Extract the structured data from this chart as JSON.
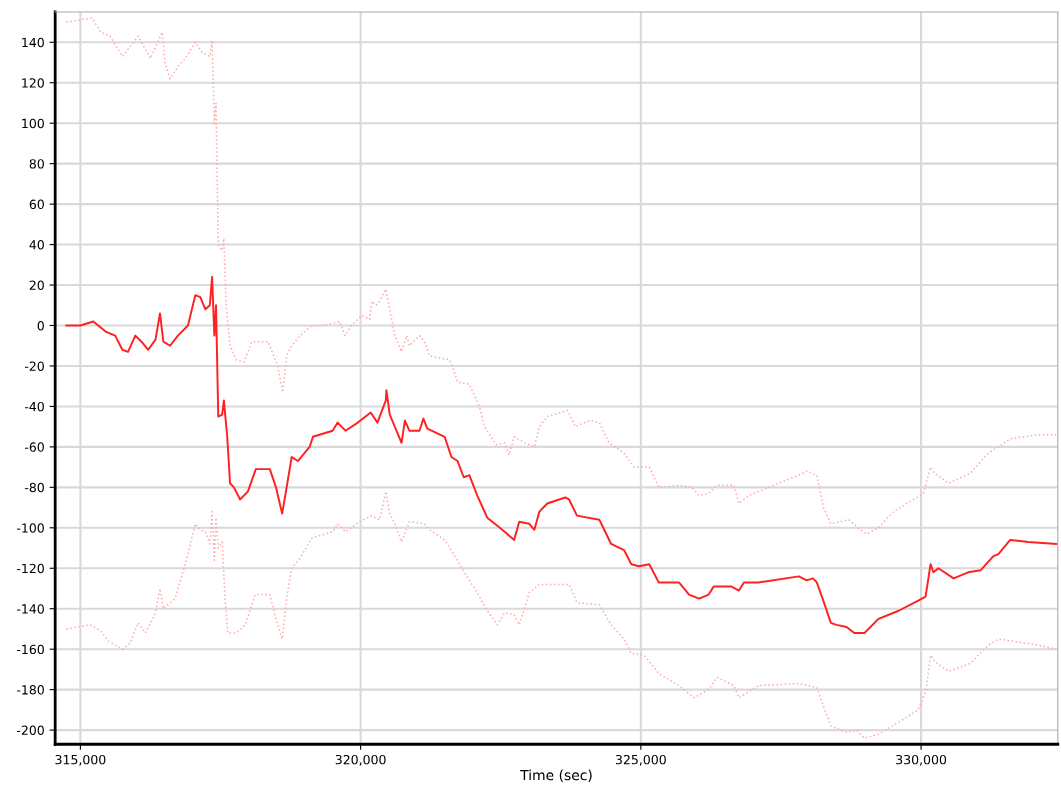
{
  "chart_data": {
    "type": "line",
    "xlabel": "Time (sec)",
    "xlim": [
      314550,
      332440
    ],
    "ylim": [
      -207,
      155
    ],
    "xticks": [
      {
        "value": 315000,
        "label": "315,000"
      },
      {
        "value": 320000,
        "label": "320,000"
      },
      {
        "value": 325000,
        "label": "325,000"
      },
      {
        "value": 330000,
        "label": "330,000"
      }
    ],
    "yticks": [
      -200,
      -180,
      -160,
      -140,
      -120,
      -100,
      -80,
      -60,
      -40,
      -20,
      0,
      20,
      40,
      60,
      80,
      100,
      120,
      140
    ],
    "grid": true,
    "marker": "none",
    "series": [
      {
        "color": "#ffaaaa",
        "line_style": "dotted",
        "x": [
          314750,
          315210,
          315360,
          315530,
          315750,
          316030,
          316250,
          316460,
          316510,
          316600,
          316740,
          316870,
          317050,
          317170,
          317310,
          317350,
          317390,
          317420,
          317460,
          317530,
          317560,
          317600,
          317670,
          317780,
          317920,
          318060,
          318350,
          318520,
          318610,
          318680,
          318770,
          318920,
          319130,
          319360,
          319630,
          319720,
          319840,
          320020,
          320160,
          320200,
          320270,
          320340,
          320450,
          320520,
          320610,
          320730,
          320820,
          320870,
          321050,
          321140,
          321230,
          321590,
          321660,
          321730,
          321940,
          322120,
          322210,
          322420,
          322570,
          322650,
          322740,
          322920,
          323100,
          323190,
          323330,
          323690,
          323830,
          324080,
          324260,
          324430,
          324700,
          324880,
          325150,
          325320,
          325680,
          325910,
          326040,
          326210,
          326360,
          326660,
          326750,
          326930,
          327280,
          327820,
          327960,
          328140,
          328260,
          328390,
          328710,
          328920,
          329030,
          329240,
          329510,
          329860,
          330040,
          330170,
          330240,
          330490,
          330880,
          331200,
          331380,
          331590,
          332090,
          332410
        ],
        "values": [
          150,
          152,
          145,
          143,
          133,
          143,
          132,
          145,
          130,
          122,
          128,
          132,
          140,
          135,
          133,
          141,
          100,
          110,
          40,
          37,
          43,
          10,
          -10,
          -17,
          -18,
          -8,
          -8,
          -20,
          -33,
          -15,
          -10,
          -5,
          0,
          0,
          2,
          -5,
          0,
          5,
          3,
          12,
          10,
          12,
          18,
          8,
          -5,
          -13,
          -5,
          -10,
          -5,
          -8,
          -15,
          -17,
          -22,
          -28,
          -29,
          -40,
          -50,
          -59,
          -58,
          -64,
          -55,
          -58,
          -60,
          -50,
          -45,
          -42,
          -50,
          -47,
          -48,
          -58,
          -63,
          -70,
          -70,
          -80,
          -79,
          -80,
          -84,
          -83,
          -79,
          -79,
          -88,
          -84,
          -80,
          -74,
          -72,
          -74,
          -90,
          -98,
          -96,
          -101,
          -103,
          -100,
          -92,
          -86,
          -83,
          -70,
          -73,
          -78,
          -73,
          -63,
          -60,
          -56,
          -54,
          -54
        ]
      },
      {
        "color": "#ff2020",
        "line_style": "solid",
        "x": [
          314750,
          315000,
          315230,
          315450,
          315620,
          315750,
          315850,
          315980,
          316090,
          316210,
          316340,
          316420,
          316480,
          316600,
          316740,
          316920,
          317050,
          317140,
          317230,
          317310,
          317350,
          317390,
          317420,
          317460,
          317530,
          317560,
          317620,
          317670,
          317740,
          317850,
          317990,
          318130,
          318380,
          318490,
          318600,
          318680,
          318770,
          318880,
          319090,
          319150,
          319500,
          319590,
          319730,
          319950,
          320180,
          320300,
          320450,
          320460,
          320520,
          320610,
          320730,
          320790,
          320870,
          321050,
          321120,
          321190,
          321500,
          321620,
          321730,
          321840,
          321940,
          322080,
          322260,
          322440,
          322570,
          322740,
          322830,
          323010,
          323100,
          323190,
          323330,
          323650,
          323720,
          323860,
          324260,
          324470,
          324700,
          324830,
          324970,
          325150,
          325320,
          325680,
          325860,
          326040,
          326210,
          326300,
          326610,
          326750,
          326840,
          327100,
          327820,
          327960,
          328070,
          328140,
          328280,
          328390,
          328490,
          328670,
          328810,
          328990,
          329240,
          329600,
          329950,
          330080,
          330170,
          330220,
          330310,
          330580,
          330840,
          331060,
          331290,
          331380,
          331590,
          331910,
          332410
        ],
        "values": [
          0,
          0,
          2,
          -3,
          -5,
          -12,
          -13,
          -5,
          -8,
          -12,
          -7,
          6,
          -8,
          -10,
          -5,
          0,
          15,
          14,
          8,
          10,
          24,
          -5,
          10,
          -45,
          -44,
          -37,
          -55,
          -78,
          -80,
          -86,
          -82,
          -71,
          -71,
          -80,
          -93,
          -80,
          -65,
          -67,
          -60,
          -55,
          -52,
          -48,
          -52,
          -48,
          -43,
          -48,
          -37,
          -32,
          -44,
          -50,
          -58,
          -47,
          -52,
          -52,
          -46,
          -51,
          -55,
          -65,
          -67,
          -75,
          -74,
          -84,
          -95,
          -99,
          -102,
          -106,
          -97,
          -98,
          -101,
          -92,
          -88,
          -85,
          -86,
          -94,
          -96,
          -108,
          -111,
          -118,
          -119,
          -118,
          -127,
          -127,
          -133,
          -135,
          -133,
          -129,
          -129,
          -131,
          -127,
          -127,
          -124,
          -126,
          -125,
          -127,
          -138,
          -147,
          -148,
          -149,
          -152,
          -152,
          -145,
          -141,
          -136,
          -134,
          -118,
          -122,
          -120,
          -125,
          -122,
          -121,
          -114,
          -113,
          -106,
          -107,
          -108
        ]
      },
      {
        "color": "#ffaaaa",
        "line_style": "dotted",
        "x": [
          314750,
          315180,
          315360,
          315500,
          315750,
          315890,
          316030,
          316160,
          316340,
          316420,
          316480,
          316690,
          316870,
          317050,
          317140,
          317230,
          317310,
          317350,
          317390,
          317420,
          317460,
          317530,
          317580,
          317630,
          317780,
          317940,
          318120,
          318380,
          318490,
          318600,
          318680,
          318770,
          318920,
          319130,
          319500,
          319590,
          319730,
          319980,
          320200,
          320340,
          320450,
          320520,
          320610,
          320730,
          320870,
          321140,
          321230,
          321500,
          321680,
          321850,
          322080,
          322260,
          322440,
          322570,
          322740,
          322830,
          323010,
          323190,
          323720,
          323860,
          324260,
          324470,
          324700,
          324830,
          325060,
          325320,
          325680,
          325950,
          326210,
          326360,
          326660,
          326750,
          327100,
          327820,
          328140,
          328280,
          328390,
          328670,
          328850,
          328990,
          329240,
          329600,
          329950,
          330090,
          330170,
          330240,
          330490,
          330880,
          331200,
          331380,
          332090,
          332410
        ],
        "values": [
          -150,
          -148,
          -151,
          -156,
          -160,
          -157,
          -147,
          -152,
          -142,
          -130,
          -140,
          -135,
          -118,
          -98,
          -101,
          -102,
          -108,
          -92,
          -117,
          -95,
          -110,
          -107,
          -135,
          -152,
          -152,
          -148,
          -133,
          -133,
          -145,
          -155,
          -135,
          -120,
          -115,
          -105,
          -102,
          -98,
          -102,
          -97,
          -94,
          -96,
          -82,
          -93,
          -98,
          -107,
          -97,
          -98,
          -101,
          -106,
          -114,
          -122,
          -132,
          -141,
          -148,
          -142,
          -143,
          -148,
          -132,
          -128,
          -128,
          -137,
          -138,
          -148,
          -155,
          -162,
          -163,
          -172,
          -178,
          -184,
          -180,
          -174,
          -178,
          -184,
          -178,
          -177,
          -179,
          -190,
          -198,
          -201,
          -200,
          -204,
          -202,
          -196,
          -190,
          -180,
          -163,
          -166,
          -171,
          -167,
          -158,
          -155,
          -158,
          -160
        ]
      }
    ]
  }
}
